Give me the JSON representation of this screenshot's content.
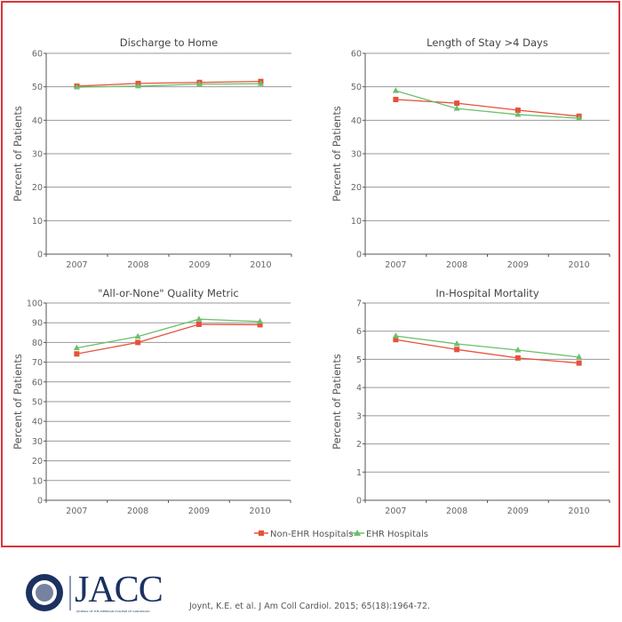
{
  "chart_data": [
    {
      "type": "line",
      "title": "Discharge to Home",
      "ylabel": "Percent of Patients",
      "categories": [
        "2007",
        "2008",
        "2009",
        "2010"
      ],
      "ylim": [
        0,
        60
      ],
      "yticks": [
        0,
        10,
        20,
        30,
        40,
        50,
        60
      ],
      "grid": true,
      "series": [
        {
          "name": "Non-EHR Hospitals",
          "marker": "square",
          "values": [
            50.2,
            51.0,
            51.3,
            51.6
          ]
        },
        {
          "name": "EHR Hospitals",
          "marker": "triangle",
          "values": [
            49.9,
            50.2,
            50.8,
            50.9
          ]
        }
      ]
    },
    {
      "type": "line",
      "title": "Length of Stay >4 Days",
      "ylabel": "Percent of Patients",
      "categories": [
        "2007",
        "2008",
        "2009",
        "2010"
      ],
      "ylim": [
        0,
        60
      ],
      "yticks": [
        0,
        10,
        20,
        30,
        40,
        50,
        60
      ],
      "grid": true,
      "series": [
        {
          "name": "Non-EHR Hospitals",
          "marker": "square",
          "values": [
            46.2,
            45.1,
            43.0,
            41.2
          ]
        },
        {
          "name": "EHR Hospitals",
          "marker": "triangle",
          "values": [
            48.8,
            43.5,
            41.7,
            40.6
          ]
        }
      ]
    },
    {
      "type": "line",
      "title": "\"All-or-None\" Quality Metric",
      "ylabel": "Percent of Patients",
      "categories": [
        "2007",
        "2008",
        "2009",
        "2010"
      ],
      "ylim": [
        0,
        100
      ],
      "yticks": [
        0,
        10,
        20,
        30,
        40,
        50,
        60,
        70,
        80,
        90,
        100
      ],
      "grid": true,
      "series": [
        {
          "name": "Non-EHR Hospitals",
          "marker": "square",
          "values": [
            74.2,
            80.0,
            89.2,
            89.0
          ]
        },
        {
          "name": "EHR Hospitals",
          "marker": "triangle",
          "values": [
            77.2,
            83.0,
            91.8,
            90.6
          ]
        }
      ]
    },
    {
      "type": "line",
      "title": "In-Hospital Mortality",
      "ylabel": "Percent of Patients",
      "categories": [
        "2007",
        "2008",
        "2009",
        "2010"
      ],
      "ylim": [
        0,
        7
      ],
      "yticks": [
        0,
        1,
        2,
        3,
        4,
        5,
        6,
        7
      ],
      "grid": true,
      "series": [
        {
          "name": "Non-EHR Hospitals",
          "marker": "square",
          "values": [
            5.7,
            5.35,
            5.05,
            4.87
          ]
        },
        {
          "name": "EHR Hospitals",
          "marker": "triangle",
          "values": [
            5.83,
            5.55,
            5.33,
            5.08
          ]
        }
      ]
    }
  ],
  "legend": {
    "position": "bottom-right",
    "items": [
      {
        "label": "Non-EHR Hospitals",
        "color": "#e8503a",
        "marker": "square"
      },
      {
        "label": "EHR Hospitals",
        "color": "#6cbf6c",
        "marker": "triangle"
      }
    ]
  },
  "colors": {
    "frame": "#d9343a",
    "grid": "#888888",
    "non_ehr": "#e8503a",
    "ehr": "#6cbf6c",
    "logo": "#1b3160"
  },
  "footer": {
    "logo_text": "JACC",
    "logo_subtext": "JOURNAL OF THE AMERICAN COLLEGE OF CARDIOLOGY",
    "citation": "Joynt, K.E. et al. J Am Coll Cardiol. 2015; 65(18):1964-72."
  }
}
